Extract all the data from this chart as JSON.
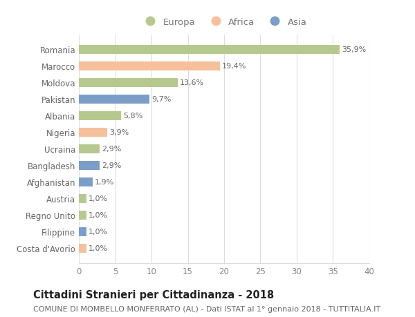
{
  "countries": [
    "Romania",
    "Marocco",
    "Moldova",
    "Pakistan",
    "Albania",
    "Nigeria",
    "Ucraina",
    "Bangladesh",
    "Afghanistan",
    "Austria",
    "Regno Unito",
    "Filippine",
    "Costa d'Avorio"
  ],
  "values": [
    35.9,
    19.4,
    13.6,
    9.7,
    5.8,
    3.9,
    2.9,
    2.9,
    1.9,
    1.0,
    1.0,
    1.0,
    1.0
  ],
  "labels": [
    "35,9%",
    "19,4%",
    "13,6%",
    "9,7%",
    "5,8%",
    "3,9%",
    "2,9%",
    "2,9%",
    "1,9%",
    "1,0%",
    "1,0%",
    "1,0%",
    "1,0%"
  ],
  "continents": [
    "Europa",
    "Africa",
    "Europa",
    "Asia",
    "Europa",
    "Africa",
    "Europa",
    "Asia",
    "Asia",
    "Europa",
    "Europa",
    "Asia",
    "Africa"
  ],
  "colors": {
    "Europa": "#b5c98e",
    "Africa": "#f5c09a",
    "Asia": "#7b9ec9"
  },
  "legend_labels": [
    "Europa",
    "Africa",
    "Asia"
  ],
  "title": "Cittadini Stranieri per Cittadinanza - 2018",
  "subtitle": "COMUNE DI MOMBELLO MONFERRATO (AL) - Dati ISTAT al 1° gennaio 2018 - TUTTITALIA.IT",
  "xlim": [
    0,
    40
  ],
  "xticks": [
    0,
    5,
    10,
    15,
    20,
    25,
    30,
    35,
    40
  ],
  "bg_color": "#ffffff",
  "grid_color": "#dddddd",
  "bar_height": 0.55,
  "title_fontsize": 10.5,
  "subtitle_fontsize": 8,
  "label_fontsize": 8,
  "tick_fontsize": 8.5,
  "legend_fontsize": 9.5
}
